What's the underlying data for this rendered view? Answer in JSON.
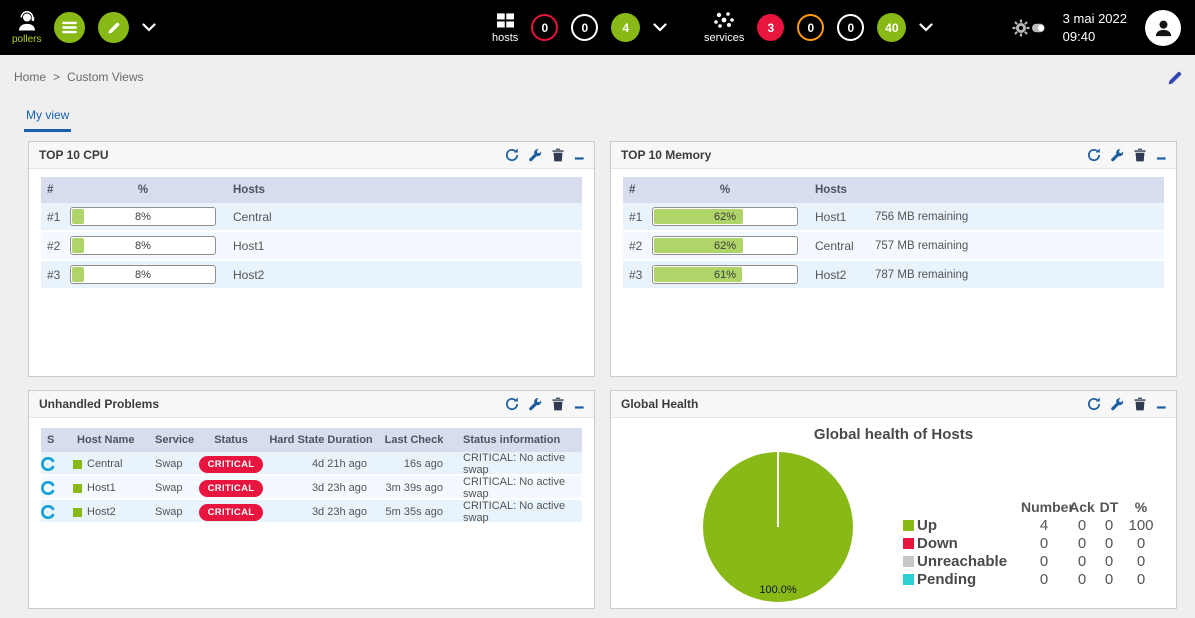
{
  "topbar": {
    "pollers_label": "pollers",
    "hosts_label": "hosts",
    "services_label": "services",
    "hosts_badges": [
      "0",
      "0",
      "4"
    ],
    "services_badges": [
      "3",
      "0",
      "0",
      "40"
    ],
    "date": "3 mai 2022",
    "time": "09:40"
  },
  "breadcrumb": {
    "home": "Home",
    "separator": ">",
    "current": "Custom Views"
  },
  "tabs": {
    "my_view": "My view"
  },
  "panels": {
    "cpu": {
      "title": "TOP 10 CPU",
      "columns": [
        "#",
        "%",
        "Hosts"
      ],
      "rows": [
        {
          "rank": "#1",
          "percent": "8%",
          "value": 8,
          "host": "Central"
        },
        {
          "rank": "#2",
          "percent": "8%",
          "value": 8,
          "host": "Host1"
        },
        {
          "rank": "#3",
          "percent": "8%",
          "value": 8,
          "host": "Host2"
        }
      ]
    },
    "memory": {
      "title": "TOP 10 Memory",
      "columns": [
        "#",
        "%",
        "Hosts"
      ],
      "rows": [
        {
          "rank": "#1",
          "percent": "62%",
          "value": 62,
          "host": "Host1",
          "remaining": "756 MB remaining"
        },
        {
          "rank": "#2",
          "percent": "62%",
          "value": 62,
          "host": "Central",
          "remaining": "757 MB remaining"
        },
        {
          "rank": "#3",
          "percent": "61%",
          "value": 61,
          "host": "Host2",
          "remaining": "787 MB remaining"
        }
      ]
    },
    "problems": {
      "title": "Unhandled Problems",
      "columns": [
        "S",
        "Host Name",
        "Service",
        "Status",
        "Hard State Duration",
        "Last Check",
        "Status information"
      ],
      "rows": [
        {
          "host": "Central",
          "service": "Swap",
          "status": "CRITICAL",
          "duration": "4d 21h ago",
          "last_check": "16s ago",
          "info": "CRITICAL: No active swap"
        },
        {
          "host": "Host1",
          "service": "Swap",
          "status": "CRITICAL",
          "duration": "3d 23h ago",
          "last_check": "3m 39s ago",
          "info": "CRITICAL: No active swap"
        },
        {
          "host": "Host2",
          "service": "Swap",
          "status": "CRITICAL",
          "duration": "3d 23h ago",
          "last_check": "5m 35s ago",
          "info": "CRITICAL: No active swap"
        }
      ]
    },
    "health": {
      "title": "Global Health",
      "chart_title": "Global health of Hosts",
      "pie_label": "100.0%",
      "legend_columns": [
        "Number",
        "Ack",
        "DT",
        "%"
      ],
      "legend": [
        {
          "label": "Up",
          "color": "#88b917",
          "number": "4",
          "ack": "0",
          "dt": "0",
          "pct": "100"
        },
        {
          "label": "Down",
          "color": "#e8153f",
          "number": "0",
          "ack": "0",
          "dt": "0",
          "pct": "0"
        },
        {
          "label": "Unreachable",
          "color": "#c7c7c7",
          "number": "0",
          "ack": "0",
          "dt": "0",
          "pct": "0"
        },
        {
          "label": "Pending",
          "color": "#2ad1d4",
          "number": "0",
          "ack": "0",
          "dt": "0",
          "pct": "0"
        }
      ]
    }
  },
  "chart_data": {
    "type": "pie",
    "title": "Global health of Hosts",
    "labels": [
      "Up",
      "Down",
      "Unreachable",
      "Pending"
    ],
    "values": [
      100,
      0,
      0,
      0
    ],
    "counts": [
      4,
      0,
      0,
      0
    ],
    "colors": [
      "#88b917",
      "#e8153f",
      "#c7c7c7",
      "#2ad1d4"
    ],
    "annotation": "100.0%",
    "legend_position": "right"
  },
  "colors": {
    "accent_green": "#88b917",
    "critical_red": "#e8153f",
    "warning_orange": "#ff9a13",
    "pending_cyan": "#2ad1d4",
    "unreachable_gray": "#c7c7c7",
    "widget_icon_blue": "#1d5e9e",
    "tab_blue": "#1761b0",
    "topbar_black": "#000000"
  },
  "icons": {
    "pollers": "headset-person",
    "poller_list": "list-lines",
    "poller_edit": "pencil",
    "hosts": "blocks-grid",
    "services": "dots-cluster",
    "chevron": "chevron-down",
    "settings": "gear-toggle",
    "user": "person-avatar",
    "breadcrumb_edit": "pencil",
    "widget_icons": [
      "refresh",
      "wrench",
      "trash",
      "minimize"
    ],
    "problem_logo": "centreon-c-logo",
    "host_status": "green-square"
  }
}
